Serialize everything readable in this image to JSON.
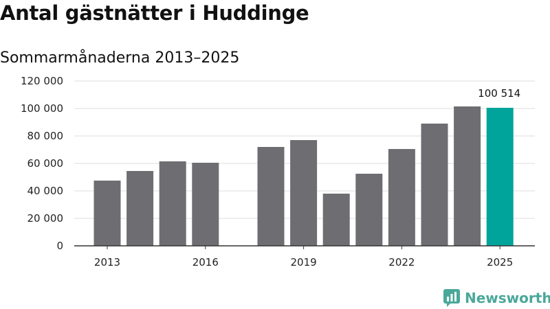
{
  "title": "Antal gästnätter i Huddinge",
  "subtitle": "Sommarmånaderna 2013–2025",
  "brand": {
    "name": "Newsworthy",
    "icon": "newsworthy-logo-icon",
    "color": "#4aa89a"
  },
  "colors": {
    "bar": "#6e6d72",
    "highlight": "#00a49a",
    "grid": "#dddddd",
    "axis": "#333333"
  },
  "chart_data": {
    "type": "bar",
    "categories": [
      "2013",
      "2014",
      "2015",
      "2016",
      "2017",
      "2018",
      "2019",
      "2020",
      "2021",
      "2022",
      "2023",
      "2024",
      "2025"
    ],
    "values": [
      47500,
      54500,
      61500,
      60500,
      null,
      72000,
      77000,
      38000,
      52500,
      70500,
      89000,
      101500,
      100514
    ],
    "highlight_index": 12,
    "x_tick_labels": [
      "2013",
      "2016",
      "2019",
      "2022",
      "2025"
    ],
    "x_tick_categories": [
      "2013",
      "2016",
      "2019",
      "2022",
      "2025"
    ],
    "y_ticks": [
      0,
      20000,
      40000,
      60000,
      80000,
      100000,
      120000
    ],
    "y_tick_labels": [
      "0",
      "20 000",
      "40 000",
      "60 000",
      "80 000",
      "100 000",
      "120 000"
    ],
    "ylim": [
      0,
      120000
    ],
    "data_labels": [
      {
        "category": "2025",
        "text": "100 514"
      }
    ],
    "grid": true,
    "legend": "none",
    "title": "Antal gästnätter i Huddinge",
    "subtitle": "Sommarmånaderna 2013–2025",
    "xlabel": "",
    "ylabel": ""
  }
}
